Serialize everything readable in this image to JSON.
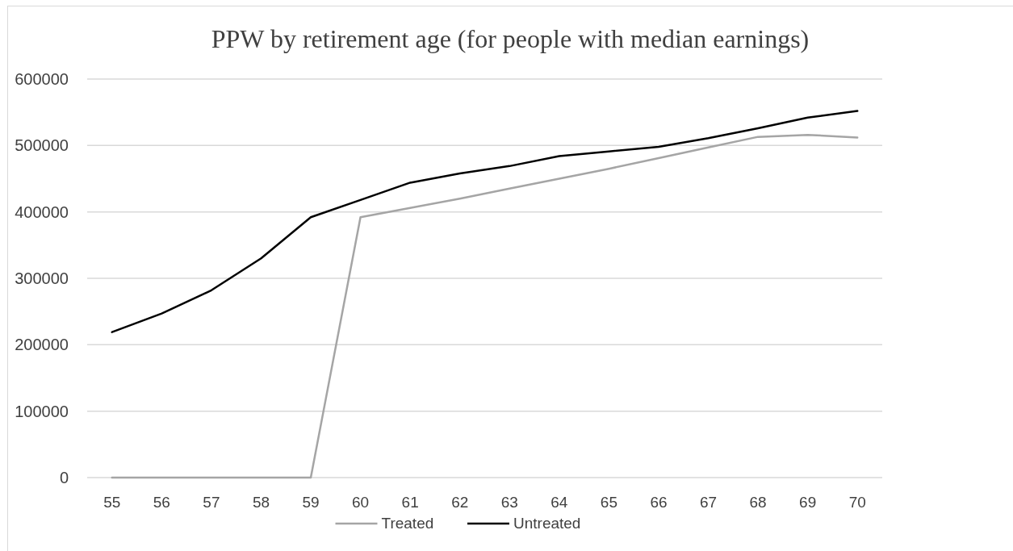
{
  "chart_data": {
    "type": "line",
    "title": "PPW by retirement age (for people with median earnings)",
    "categories": [
      "55",
      "56",
      "57",
      "58",
      "59",
      "60",
      "61",
      "62",
      "63",
      "64",
      "65",
      "66",
      "67",
      "68",
      "69",
      "70"
    ],
    "series": [
      {
        "name": "Treated",
        "color": "#a5a5a5",
        "values": [
          0,
          0,
          0,
          0,
          0,
          392000,
          406000,
          420000,
          435000,
          450000,
          465000,
          481000,
          497000,
          513000,
          516000,
          512000
        ]
      },
      {
        "name": "Untreated",
        "color": "#000000",
        "values": [
          219000,
          247000,
          282000,
          330000,
          392000,
          418000,
          444000,
          458000,
          469000,
          484000,
          491000,
          498000,
          511000,
          526000,
          542000,
          552000
        ]
      }
    ],
    "ylim": [
      0,
      600000
    ],
    "yticks": [
      0,
      100000,
      200000,
      300000,
      400000,
      500000,
      600000
    ],
    "grid": "y",
    "legend": "bottom",
    "line_style": "solid",
    "marker": "none"
  }
}
